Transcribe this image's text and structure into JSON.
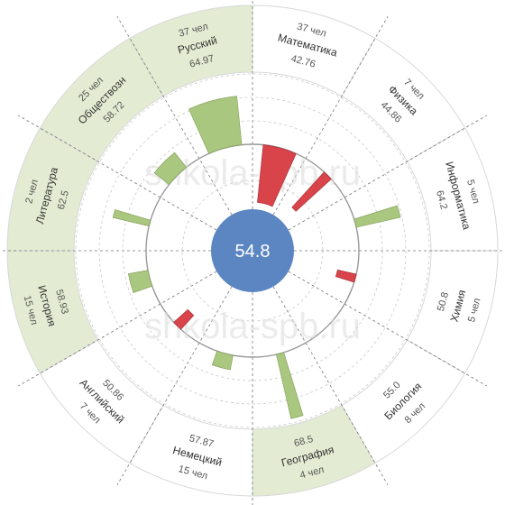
{
  "chart_data": {
    "type": "radial-bar",
    "center_value": "54.8",
    "baseline": 54.8,
    "scale_max_deviation": 15,
    "watermark": "shkola-spb.ru",
    "colors": {
      "above": "#a9c77e",
      "below": "#d9434a",
      "highlight_bg": "#e3ecd2",
      "center": "#5b86c1",
      "grid": "#c8c8c8",
      "axis": "#999999"
    },
    "subjects": [
      {
        "name": "Математика",
        "score": 42.76,
        "score_label": "42.76",
        "count": "37 чел",
        "highlight": false
      },
      {
        "name": "Физика",
        "score": 44.86,
        "score_label": "44.86",
        "count": "7 чел",
        "highlight": false
      },
      {
        "name": "Информатика",
        "score": 64.2,
        "score_label": "64.2",
        "count": "5 чел",
        "highlight": false
      },
      {
        "name": "Химия",
        "score": 50.8,
        "score_label": "50.8",
        "count": "5 чел",
        "highlight": false
      },
      {
        "name": "Биология",
        "score": 55.0,
        "score_label": "55.0",
        "count": "8 чел",
        "highlight": false
      },
      {
        "name": "География",
        "score": 68.5,
        "score_label": "68.5",
        "count": "4 чел",
        "highlight": true
      },
      {
        "name": "Немецкий",
        "score": 57.87,
        "score_label": "57.87",
        "count": "15 чел",
        "highlight": false
      },
      {
        "name": "Английский",
        "score": 50.86,
        "score_label": "50.86",
        "count": "7 чел",
        "highlight": false
      },
      {
        "name": "История",
        "score": 58.93,
        "score_label": "58.93",
        "count": "15 чел",
        "highlight": true
      },
      {
        "name": "Литература",
        "score": 62.5,
        "score_label": "62.5",
        "count": "2 чел",
        "highlight": true
      },
      {
        "name": "Обществозн",
        "score": 58.72,
        "score_label": "58.72",
        "count": "25 чел",
        "highlight": true
      },
      {
        "name": "Русский",
        "score": 64.97,
        "score_label": "64.97",
        "count": "37 чел",
        "highlight": true
      }
    ]
  }
}
